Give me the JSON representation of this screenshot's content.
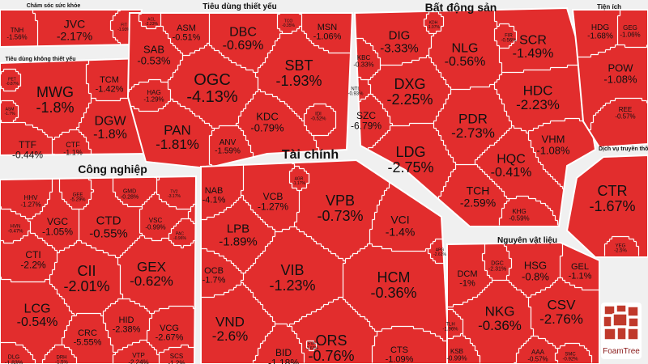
{
  "chart_data": {
    "type": "treemap",
    "colors": {
      "tile": "#e22d2d",
      "border": "#ffffff",
      "text": "#111111",
      "background": "#f0f0f0"
    },
    "sectors": [
      {
        "name": "Chăm sóc sức khỏe",
        "tiles": [
          {
            "ticker": "JVC",
            "change": "-2.17%"
          },
          {
            "ticker": "FIT",
            "change": "-1.93%"
          },
          {
            "ticker": "TNH",
            "change": "-1.56%"
          }
        ]
      },
      {
        "name": "Tiêu dùng không thiết yếu",
        "tiles": [
          {
            "ticker": "MWG",
            "change": "-1.8%"
          },
          {
            "ticker": "TCM",
            "change": "-1.42%"
          },
          {
            "ticker": "DGW",
            "change": "-1.8%"
          },
          {
            "ticker": "TTF",
            "change": "-0.44%"
          },
          {
            "ticker": "CTF",
            "change": "-1.1%"
          },
          {
            "ticker": "PET",
            "change": "-0.87%"
          },
          {
            "ticker": "ASM",
            "change": "-1.7%"
          }
        ]
      },
      {
        "name": "Tiêu dùng thiết yếu",
        "tiles": [
          {
            "ticker": "ASM",
            "change": "-0.51%"
          },
          {
            "ticker": "DBC",
            "change": "-0.69%"
          },
          {
            "ticker": "MSN",
            "change": "-1.06%"
          },
          {
            "ticker": "TCO",
            "change": "-0.35%"
          },
          {
            "ticker": "ACL",
            "change": "-2.23%"
          },
          {
            "ticker": "SAB",
            "change": "-0.53%"
          },
          {
            "ticker": "OGC",
            "change": "-4.13%"
          },
          {
            "ticker": "SBT",
            "change": "-1.93%"
          },
          {
            "ticker": "HAG",
            "change": "-1.29%"
          },
          {
            "ticker": "KDC",
            "change": "-0.79%"
          },
          {
            "ticker": "IDI",
            "change": "-0.52%"
          },
          {
            "ticker": "PAN",
            "change": "-1.81%"
          },
          {
            "ticker": "ANV",
            "change": "-1.59%"
          }
        ]
      },
      {
        "name": "Bất động sản",
        "tiles": [
          {
            "ticker": "DIG",
            "change": "-3.33%"
          },
          {
            "ticker": "NLG",
            "change": "-0.56%"
          },
          {
            "ticker": "SCR",
            "change": "-1.49%"
          },
          {
            "ticker": "FIR",
            "change": "-0.56%"
          },
          {
            "ticker": "KDH",
            "change": "-1.07%"
          },
          {
            "ticker": "KBC",
            "change": "-0.33%"
          },
          {
            "ticker": "DXG",
            "change": "-2.25%"
          },
          {
            "ticker": "HDC",
            "change": "-2.23%"
          },
          {
            "ticker": "NTL",
            "change": "-0.93%"
          },
          {
            "ticker": "SZC",
            "change": "-6.79%"
          },
          {
            "ticker": "PDR",
            "change": "-2.73%"
          },
          {
            "ticker": "VHM",
            "change": "-1.08%"
          },
          {
            "ticker": "LDG",
            "change": "-2.75%"
          },
          {
            "ticker": "HQC",
            "change": "-0.41%"
          },
          {
            "ticker": "TCH",
            "change": "-2.59%"
          },
          {
            "ticker": "KHG",
            "change": "-0.59%"
          }
        ]
      },
      {
        "name": "Tiện ích",
        "tiles": [
          {
            "ticker": "HDG",
            "change": "-1.68%"
          },
          {
            "ticker": "GEG",
            "change": "-1.06%"
          },
          {
            "ticker": "POW",
            "change": "-1.08%"
          },
          {
            "ticker": "REE",
            "change": "-0.57%"
          }
        ]
      },
      {
        "name": "Dịch vụ truyền thông",
        "tiles": [
          {
            "ticker": "CTR",
            "change": "-1.67%"
          },
          {
            "ticker": "YEG",
            "change": "-2.5%"
          }
        ]
      },
      {
        "name": "Công nghiệp",
        "tiles": [
          {
            "ticker": "HHV",
            "change": "-1.27%"
          },
          {
            "ticker": "GEE",
            "change": "-5.29%"
          },
          {
            "ticker": "GMD",
            "change": "-0.28%"
          },
          {
            "ticker": "TV2",
            "change": "-3.17%"
          },
          {
            "ticker": "HVN",
            "change": "-0.47%"
          },
          {
            "ticker": "VGC",
            "change": "-1.05%"
          },
          {
            "ticker": "CTD",
            "change": "-0.55%"
          },
          {
            "ticker": "VSC",
            "change": "-0.99%"
          },
          {
            "ticker": "PAC",
            "change": "-0.96%"
          },
          {
            "ticker": "CTI",
            "change": "-2.2%"
          },
          {
            "ticker": "CII",
            "change": "-2.01%"
          },
          {
            "ticker": "GEX",
            "change": "-0.62%"
          },
          {
            "ticker": "LCG",
            "change": "-0.54%"
          },
          {
            "ticker": "HID",
            "change": "-2.38%"
          },
          {
            "ticker": "CRC",
            "change": "-5.55%"
          },
          {
            "ticker": "VCG",
            "change": "-2.67%"
          },
          {
            "ticker": "DLG",
            "change": "-1.83%"
          },
          {
            "ticker": "DRH",
            "change": "-1.5%"
          },
          {
            "ticker": "VTP",
            "change": "-2.24%"
          },
          {
            "ticker": "SCS",
            "change": "-1.2%"
          }
        ]
      },
      {
        "name": "Tài chính",
        "tiles": [
          {
            "ticker": "NAB",
            "change": "-4.1%"
          },
          {
            "ticker": "VCB",
            "change": "-1.27%"
          },
          {
            "ticker": "VPB",
            "change": "-0.73%"
          },
          {
            "ticker": "LPB",
            "change": "-1.89%"
          },
          {
            "ticker": "VCI",
            "change": "-1.4%"
          },
          {
            "ticker": "OCB",
            "change": "-1.7%"
          },
          {
            "ticker": "VIB",
            "change": "-1.23%"
          },
          {
            "ticker": "HCM",
            "change": "-0.36%"
          },
          {
            "ticker": "VND",
            "change": "-2.6%"
          },
          {
            "ticker": "ORS",
            "change": "-0.76%"
          },
          {
            "ticker": "BID",
            "change": "-1.18%"
          },
          {
            "ticker": "CTS",
            "change": "-1.09%"
          },
          {
            "ticker": "APG",
            "change": "-2.61%"
          },
          {
            "ticker": "AGR",
            "change": "-1.17%"
          },
          {
            "ticker": "EVF",
            "change": "-1.63%"
          }
        ]
      },
      {
        "name": "Nguyên vật liệu",
        "tiles": [
          {
            "ticker": "DCM",
            "change": "-1%"
          },
          {
            "ticker": "DGC",
            "change": "-2.31%"
          },
          {
            "ticker": "HSG",
            "change": "-0.8%"
          },
          {
            "ticker": "GEL",
            "change": "-1.1%"
          },
          {
            "ticker": "NKG",
            "change": "-0.36%"
          },
          {
            "ticker": "CSV",
            "change": "-2.76%"
          },
          {
            "ticker": "KSB",
            "change": "-0.99%"
          },
          {
            "ticker": "AAA",
            "change": "-0.57%"
          },
          {
            "ticker": "SMC",
            "change": "-0.92%"
          },
          {
            "ticker": "TLH",
            "change": "-1.96%"
          }
        ]
      }
    ]
  },
  "logo": {
    "label": "FoamTree"
  }
}
